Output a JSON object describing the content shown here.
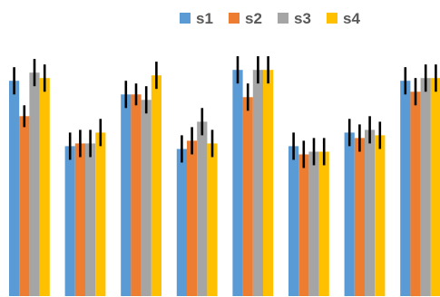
{
  "chart_data": {
    "type": "bar",
    "title": "",
    "xlabel": "",
    "ylabel": "",
    "categories": [
      "",
      "",
      "",
      "",
      "",
      "",
      "",
      ""
    ],
    "ylim": [
      0,
      100
    ],
    "grid": false,
    "legend_position": "top-right",
    "error_bar_color": "#000000",
    "series": [
      {
        "name": "s1",
        "color": "#5B9BD5",
        "values": [
          79,
          55,
          74,
          54,
          83,
          55,
          60,
          79
        ],
        "errors": [
          5,
          5,
          5,
          5,
          5,
          5,
          5,
          5
        ]
      },
      {
        "name": "s2",
        "color": "#ED7D31",
        "values": [
          66,
          56,
          74,
          57,
          73,
          52,
          58,
          75
        ],
        "errors": [
          4,
          5,
          4,
          5,
          5,
          5,
          5,
          5
        ]
      },
      {
        "name": "s3",
        "color": "#A5A5A5",
        "values": [
          82,
          56,
          72,
          64,
          83,
          53,
          61,
          80
        ],
        "errors": [
          5,
          5,
          5,
          5,
          5,
          5,
          5,
          5
        ]
      },
      {
        "name": "s4",
        "color": "#FFC000",
        "values": [
          80,
          60,
          81,
          56,
          83,
          53,
          59,
          80
        ],
        "errors": [
          5,
          5,
          5,
          5,
          5,
          5,
          5,
          5
        ]
      }
    ]
  }
}
